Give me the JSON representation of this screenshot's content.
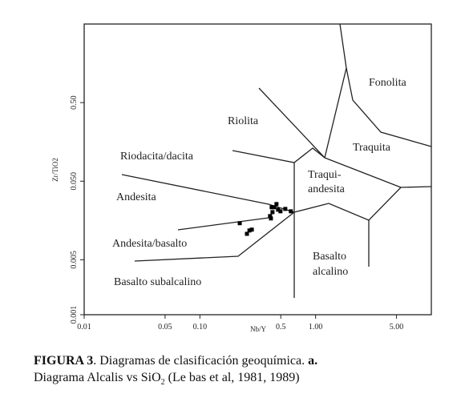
{
  "chart_data": {
    "type": "scatter",
    "x_label": "Nb/Y",
    "y_label": "Zr/TiO2",
    "log_x": true,
    "log_y": true,
    "xlim": [
      0.01,
      10
    ],
    "ylim": [
      0.001,
      5
    ],
    "xticks": [
      0.01,
      0.05,
      {
        "value": 0.1,
        "label": "0.10"
      },
      0.5,
      {
        "value": 1,
        "label": "1.00"
      },
      {
        "value": 5,
        "label": "5.00"
      }
    ],
    "yticks": [
      {
        "value": 0.001,
        "label": "0.001"
      },
      {
        "value": 0.005,
        "label": "0.005"
      },
      {
        "value": 0.05,
        "label": "0.050"
      },
      {
        "value": 0.5,
        "label": "0.50"
      }
    ],
    "color": "#000000",
    "regions": [
      "Fonolita",
      "Riolita",
      "Traquita",
      "Riodacita/dacita",
      "Traqui-",
      "andesita",
      "Andesita",
      "Andesita/basalto",
      "Basalto",
      "alcalino",
      "Basalto subalcalino"
    ],
    "x": [
      0.221,
      0.268,
      0.255,
      0.281,
      0.404,
      0.424,
      0.438,
      0.459,
      0.474,
      0.497,
      0.417,
      0.547,
      0.611,
      0.411
    ],
    "values": [
      0.0146,
      0.0118,
      0.0107,
      0.0121,
      0.018,
      0.0202,
      0.0233,
      0.0256,
      0.0217,
      0.0207,
      0.0233,
      0.0222,
      0.0207,
      0.0168
    ]
  },
  "caption": {
    "label": "FIGURA 3",
    "text": ". Diagramas de clasificación geoquímica.",
    "part": "a.",
    "line2": "Diagrama Alcalis vs SiO",
    "sub": "2",
    "ref": "(Le bas et al, 1981, 1989)"
  }
}
